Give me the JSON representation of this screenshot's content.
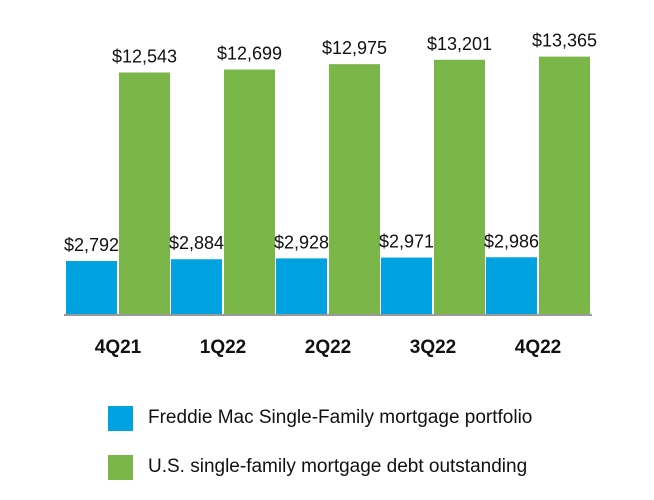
{
  "chart_data": {
    "type": "bar",
    "title": "",
    "xlabel": "",
    "ylabel": "",
    "categories": [
      "4Q21",
      "1Q22",
      "2Q22",
      "3Q22",
      "4Q22"
    ],
    "ylim": [
      0,
      15000
    ],
    "grid": false,
    "legend_placement": "bottom",
    "series": [
      {
        "name": "Freddie Mac Single-Family mortgage portfolio",
        "color": "#00a3e0",
        "values": [
          2792,
          2884,
          2928,
          2971,
          2986
        ],
        "labels": [
          "$2,792",
          "$2,884",
          "$2,928",
          "$2,971",
          "$2,986"
        ]
      },
      {
        "name": "U.S. single-family mortgage debt outstanding",
        "color": "#7ab648",
        "values": [
          12543,
          12699,
          12975,
          13201,
          13365
        ],
        "labels": [
          "$12,543",
          "$12,699",
          "$12,975",
          "$13,201",
          "$13,365"
        ]
      }
    ]
  }
}
